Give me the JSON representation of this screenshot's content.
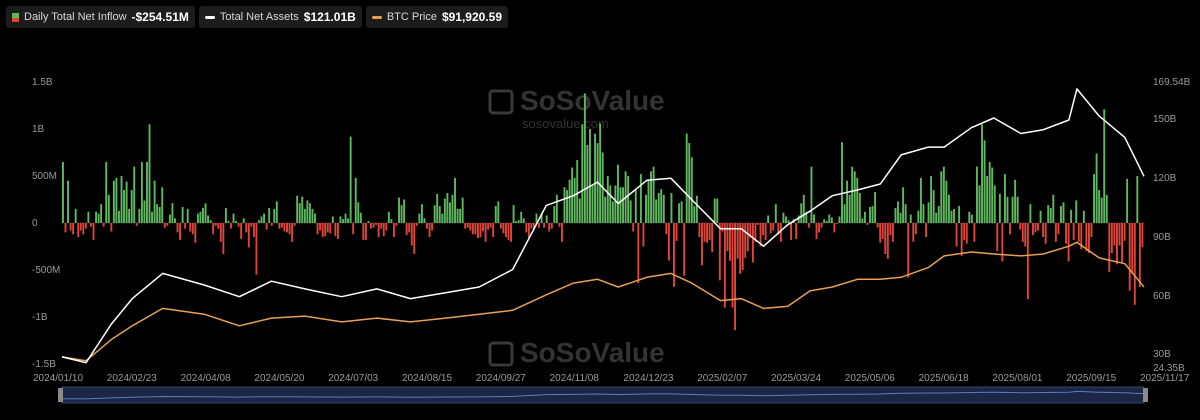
{
  "legend": {
    "inflow_label": "Daily Total Net Inflow",
    "inflow_value": "-$254.51M",
    "assets_label": "Total Net Assets",
    "assets_value": "$121.01B",
    "btc_label": "BTC Price",
    "btc_value": "$91,920.59"
  },
  "watermark": {
    "brand": "SoSoValue",
    "url": "sosovalue.com"
  },
  "colors": {
    "inflow_positive": "#5fb85f",
    "inflow_negative": "#e0453a",
    "assets": "#ffffff",
    "btc": "#e7a053",
    "navigator": "#2e4a8a"
  },
  "chart_data": {
    "type": "bar+line",
    "legend_placement": "top-left",
    "grid": false,
    "x_tick_labels": [
      "2024/01/10",
      "2024/02/23",
      "2024/04/08",
      "2024/05/20",
      "2024/07/03",
      "2024/08/15",
      "2024/09/27",
      "2024/11/08",
      "2024/12/23",
      "2025/02/07",
      "2025/03/24",
      "2025/05/06",
      "2025/06/18",
      "2025/08/01",
      "2025/09/15",
      "2025/11/17"
    ],
    "x_range": [
      "2024/01/10",
      "2025/11/17"
    ],
    "left_axis": {
      "series": "Daily Total Net Inflow",
      "ticks": [
        "1.5B",
        "1B",
        "500M",
        "0",
        "-500M",
        "-1B",
        "-1.5B"
      ],
      "range": [
        -1500,
        1500
      ],
      "unit": "M USD"
    },
    "right_axis": {
      "series": "Total Net Assets",
      "ticks": [
        "169.54B",
        "150B",
        "120B",
        "90B",
        "60B",
        "30B",
        "24.35B"
      ],
      "range": [
        24.35,
        169.54
      ],
      "unit": "B USD"
    },
    "assets_series": {
      "name": "Total Net Assets",
      "x": [
        "2024/01/10",
        "2024/01/25",
        "2024/02/10",
        "2024/02/23",
        "2024/03/13",
        "2024/04/08",
        "2024/04/30",
        "2024/05/20",
        "2024/06/10",
        "2024/07/03",
        "2024/07/25",
        "2024/08/15",
        "2024/09/06",
        "2024/09/27",
        "2024/10/18",
        "2024/11/08",
        "2024/11/25",
        "2024/12/10",
        "2024/12/23",
        "2025/01/10",
        "2025/01/25",
        "2025/02/07",
        "2025/02/25",
        "2025/03/10",
        "2025/03/24",
        "2025/04/08",
        "2025/04/22",
        "2025/05/06",
        "2025/05/22",
        "2025/06/05",
        "2025/06/18",
        "2025/07/05",
        "2025/07/15",
        "2025/08/01",
        "2025/08/15",
        "2025/09/01",
        "2025/09/15",
        "2025/10/01",
        "2025/10/06",
        "2025/10/20",
        "2025/11/05",
        "2025/11/17"
      ],
      "values": [
        28,
        25,
        45,
        58,
        71,
        65,
        59,
        67,
        63,
        59,
        63,
        58,
        61,
        64,
        73,
        106,
        111,
        118,
        107,
        119,
        120,
        109,
        94,
        94,
        85,
        96,
        103,
        111,
        114,
        117,
        132,
        136,
        136,
        146,
        151,
        143,
        145,
        150,
        166,
        152,
        141,
        121
      ]
    },
    "btc_series": {
      "name": "BTC Price",
      "x": [
        "2024/01/10",
        "2024/01/25",
        "2024/02/10",
        "2024/02/23",
        "2024/03/13",
        "2024/04/08",
        "2024/04/30",
        "2024/05/20",
        "2024/06/10",
        "2024/07/03",
        "2024/07/25",
        "2024/08/15",
        "2024/09/06",
        "2024/09/27",
        "2024/10/18",
        "2024/11/08",
        "2024/11/25",
        "2024/12/10",
        "2024/12/23",
        "2025/01/10",
        "2025/01/25",
        "2025/02/07",
        "2025/02/25",
        "2025/03/10",
        "2025/03/24",
        "2025/04/08",
        "2025/04/22",
        "2025/05/06",
        "2025/05/22",
        "2025/06/05",
        "2025/06/18",
        "2025/07/05",
        "2025/07/15",
        "2025/08/01",
        "2025/08/15",
        "2025/09/01",
        "2025/09/15",
        "2025/10/01",
        "2025/10/06",
        "2025/10/20",
        "2025/11/05",
        "2025/11/17"
      ],
      "values": [
        28,
        26,
        37,
        44,
        53,
        50,
        44,
        48,
        49,
        46,
        48,
        46,
        48,
        50,
        52,
        60,
        66,
        68,
        64,
        69,
        71,
        66,
        57,
        58,
        53,
        54,
        62,
        64,
        68,
        68,
        69,
        74,
        80,
        82,
        81,
        80,
        81,
        85,
        87,
        79,
        76,
        64
      ]
    },
    "inflow_series": {
      "name": "Daily Total Net Inflow",
      "unit": "M",
      "values": [
        650,
        -100,
        450,
        -80,
        -120,
        150,
        -150,
        -80,
        -120,
        -60,
        120,
        -40,
        -180,
        120,
        100,
        200,
        -40,
        650,
        300,
        -90,
        450,
        480,
        130,
        500,
        350,
        440,
        150,
        350,
        600,
        -30,
        150,
        650,
        240,
        650,
        1050,
        120,
        450,
        200,
        170,
        380,
        -50,
        -30,
        90,
        210,
        50,
        -100,
        -180,
        170,
        -60,
        150,
        -90,
        -120,
        -210,
        100,
        120,
        160,
        210,
        80,
        30,
        -120,
        -30,
        -60,
        -200,
        -330,
        160,
        20,
        -60,
        100,
        20,
        -40,
        -170,
        50,
        -100,
        -260,
        -40,
        -150,
        -550,
        30,
        70,
        100,
        -70,
        160,
        -30,
        150,
        230,
        -60,
        -50,
        -90,
        -100,
        -120,
        -200,
        -30,
        290,
        210,
        280,
        150,
        240,
        210,
        150,
        100,
        -120,
        -80,
        -150,
        -140,
        -100,
        -110,
        70,
        -140,
        -170,
        70,
        40,
        100,
        50,
        920,
        -120,
        480,
        220,
        110,
        -180,
        -180,
        20,
        -60,
        -50,
        -20,
        -150,
        -60,
        -140,
        -80,
        120,
        40,
        -150,
        -30,
        270,
        190,
        250,
        -130,
        -100,
        -240,
        -330,
        -30,
        100,
        200,
        50,
        -60,
        -150,
        -80,
        190,
        310,
        180,
        100,
        260,
        320,
        220,
        300,
        480,
        150,
        150,
        270,
        -60,
        -50,
        -80,
        -120,
        -120,
        -160,
        -150,
        -90,
        -200,
        -70,
        -50,
        -150,
        180,
        230,
        -60,
        -110,
        -150,
        -180,
        -200,
        190,
        20,
        30,
        120,
        50,
        -100,
        -160,
        -60,
        -70,
        100,
        -50,
        100,
        -50,
        80,
        -90,
        -60,
        180,
        300,
        -40,
        -200,
        380,
        350,
        460,
        590,
        480,
        670,
        260,
        1050,
        1380,
        830,
        1000,
        400,
        950,
        850,
        1060,
        750,
        280,
        500,
        400,
        230,
        400,
        620,
        380,
        380,
        550,
        500,
        240,
        -90,
        350,
        -640,
        520,
        -250,
        300,
        450,
        550,
        600,
        250,
        320,
        360,
        300,
        -120,
        -400,
        320,
        -680,
        -190,
        210,
        230,
        -560,
        950,
        850,
        700,
        180,
        290,
        -150,
        -450,
        -200,
        -210,
        -180,
        -310,
        260,
        260,
        -610,
        -90,
        -900,
        -300,
        -400,
        -900,
        -1140,
        -380,
        -540,
        -500,
        -370,
        -300,
        -160,
        -420,
        -200,
        -20,
        -250,
        -130,
        -180,
        80,
        -110,
        -80,
        200,
        -120,
        -200,
        110,
        70,
        30,
        -180,
        40,
        -170,
        80,
        210,
        300,
        120,
        -50,
        600,
        90,
        -170,
        -100,
        -50,
        40,
        20,
        90,
        60,
        -100,
        -10,
        70,
        860,
        200,
        450,
        300,
        600,
        550,
        480,
        320,
        50,
        120,
        -20,
        170,
        180,
        330,
        -50,
        -210,
        -170,
        -330,
        -380,
        -130,
        -200,
        160,
        230,
        110,
        380,
        200,
        -580,
        90,
        -200,
        -120,
        130,
        480,
        200,
        -150,
        220,
        500,
        350,
        110,
        180,
        550,
        600,
        450,
        300,
        130,
        150,
        -250,
        180,
        -350,
        -180,
        -220,
        120,
        90,
        -200,
        600,
        400,
        1050,
        880,
        500,
        650,
        590,
        400,
        -300,
        310,
        -410,
        520,
        280,
        -120,
        280,
        460,
        280,
        -70,
        -200,
        -250,
        -810,
        200,
        -130,
        -100,
        -80,
        130,
        -150,
        -220,
        190,
        160,
        300,
        -200,
        -120,
        180,
        220,
        -220,
        -410,
        140,
        -180,
        240,
        -200,
        -280,
        130,
        -300,
        -320,
        -150,
        520,
        740,
        350,
        270,
        1210,
        300,
        -520,
        -320,
        -240,
        -440,
        -240,
        -430,
        -190,
        470,
        -720,
        -540,
        -870,
        500,
        -680,
        -254.51
      ]
    },
    "navigator_range": [
      "2024/01/10",
      "2025/11/17"
    ]
  }
}
